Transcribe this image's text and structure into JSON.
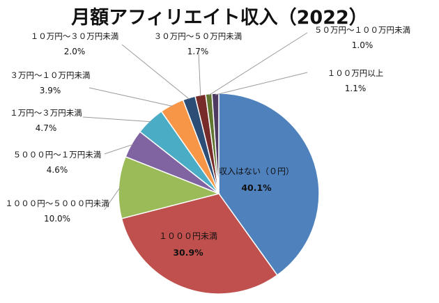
{
  "chart_data": {
    "type": "pie",
    "title": "月額アフィリエイト収入（2022）",
    "unit": "%",
    "slices": [
      {
        "label": "収入はない（０円）",
        "value": 40.1,
        "pct_text": "40.1%",
        "color": "#4F81BD"
      },
      {
        "label": "１０００円未満",
        "value": 30.9,
        "pct_text": "30.9%",
        "color": "#C0504D"
      },
      {
        "label": "１０００円～５０００円未満",
        "value": 10.0,
        "pct_text": "10.0%",
        "color": "#9BBB59"
      },
      {
        "label": "５０００円～１万円未満",
        "value": 4.6,
        "pct_text": "4.6%",
        "color": "#8064A2"
      },
      {
        "label": "１万円～３万円未満",
        "value": 4.7,
        "pct_text": "4.7%",
        "color": "#4BACC6"
      },
      {
        "label": "３万円～１０万円未満",
        "value": 3.9,
        "pct_text": "3.9%",
        "color": "#F79646"
      },
      {
        "label": "１０万円～３０万円未満",
        "value": 2.0,
        "pct_text": "2.0%",
        "color": "#2C4D75"
      },
      {
        "label": "３０万円～５０万円未満",
        "value": 1.7,
        "pct_text": "1.7%",
        "color": "#772C2A"
      },
      {
        "label": "５０万円～１００万円未満",
        "value": 1.0,
        "pct_text": "1.0%",
        "color": "#5F7530"
      },
      {
        "label": "１００万円以上",
        "value": 1.1,
        "pct_text": "1.1%",
        "color": "#4D3B62"
      }
    ],
    "legend": "none",
    "start_angle_deg": 0,
    "direction": "clockwise"
  }
}
